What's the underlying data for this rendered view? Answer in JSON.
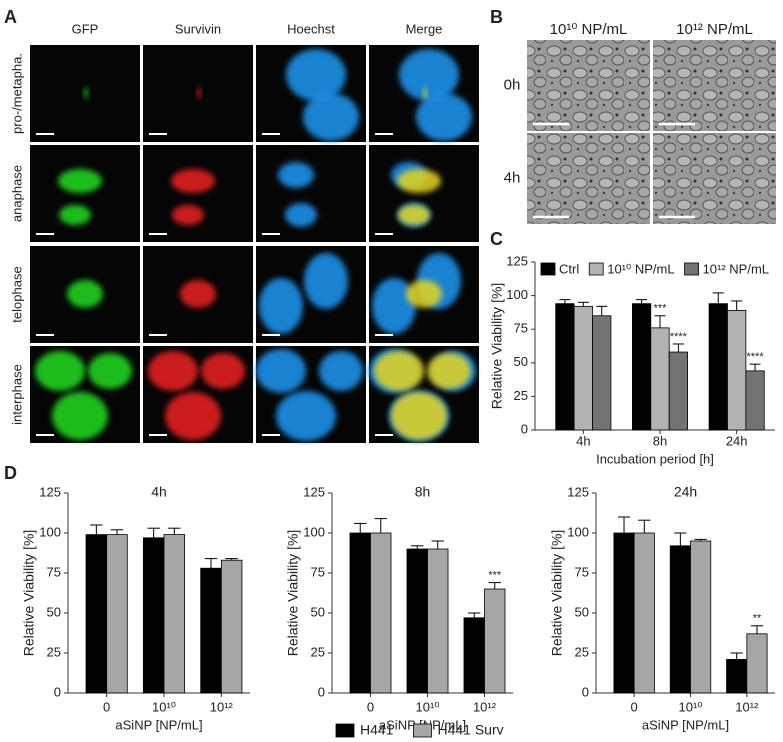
{
  "panel_labels": [
    "A",
    "B",
    "C",
    "D"
  ],
  "microscopy": {
    "columns": [
      "GFP",
      "Survivin",
      "Hoechst",
      "Merge"
    ],
    "rows": [
      "pro-/metapha.",
      "anaphase",
      "telophase",
      "interphase"
    ]
  },
  "brightfield": {
    "columns": [
      "10¹⁰ NP/mL",
      "10¹² NP/mL"
    ],
    "rows": [
      "0h",
      "4h"
    ]
  },
  "d_legend": [
    {
      "name": "H441",
      "color": "#000000"
    },
    {
      "name": "H441 Surv",
      "color": "#a6a6a6"
    }
  ],
  "chart_data": [
    {
      "type": "bar",
      "ylabel": "Relative Viability [%]",
      "xlabel": "Incubation period [h]",
      "categories": [
        "4h",
        "8h",
        "24h"
      ],
      "ylim": [
        0,
        125
      ],
      "yticks": [
        0,
        25,
        50,
        75,
        100,
        125
      ],
      "series": [
        {
          "name": "Ctrl",
          "color": "#000000",
          "values": [
            94,
            94,
            94
          ],
          "errors": [
            3,
            3,
            8
          ],
          "significance": [
            null,
            null,
            null
          ]
        },
        {
          "name": "10¹⁰ NP/mL",
          "color": "#b3b3b3",
          "values": [
            92,
            76,
            89
          ],
          "errors": [
            3,
            9,
            7
          ],
          "significance": [
            null,
            "***",
            null
          ]
        },
        {
          "name": "10¹² NP/mL",
          "color": "#737373",
          "values": [
            85,
            58,
            44
          ],
          "errors": [
            7,
            6,
            5
          ],
          "significance": [
            null,
            "****",
            "****"
          ]
        }
      ]
    },
    {
      "type": "bar",
      "title": "4h",
      "ylabel": "Relative Viability [%]",
      "xlabel": "aSiNP [NP/mL]",
      "categories": [
        "0",
        "10¹⁰",
        "10¹²"
      ],
      "ylim": [
        0,
        125
      ],
      "yticks": [
        0,
        25,
        50,
        75,
        100,
        125
      ],
      "series": [
        {
          "values": [
            99,
            97,
            78
          ],
          "errors": [
            6,
            6,
            6
          ],
          "significance": [
            null,
            null,
            null
          ]
        },
        {
          "values": [
            99,
            99,
            83
          ],
          "errors": [
            3,
            4,
            1
          ],
          "significance": [
            null,
            null,
            null
          ]
        }
      ]
    },
    {
      "type": "bar",
      "title": "8h",
      "ylabel": "Relative Viability [%]",
      "xlabel": "aSiNP [NP/mL]",
      "categories": [
        "0",
        "10¹⁰",
        "10¹²"
      ],
      "ylim": [
        0,
        125
      ],
      "yticks": [
        0,
        25,
        50,
        75,
        100,
        125
      ],
      "series": [
        {
          "values": [
            100,
            90,
            47
          ],
          "errors": [
            6,
            2,
            3
          ],
          "significance": [
            null,
            null,
            null
          ]
        },
        {
          "values": [
            100,
            90,
            65
          ],
          "errors": [
            9,
            5,
            4
          ],
          "significance": [
            null,
            null,
            "***"
          ]
        }
      ]
    },
    {
      "type": "bar",
      "title": "24h",
      "ylabel": "Relative Viability [%]",
      "xlabel": "aSiNP [NP/mL]",
      "categories": [
        "0",
        "10¹⁰",
        "10¹²"
      ],
      "ylim": [
        0,
        125
      ],
      "yticks": [
        0,
        25,
        50,
        75,
        100,
        125
      ],
      "series": [
        {
          "values": [
            100,
            92,
            21
          ],
          "errors": [
            10,
            8,
            4
          ],
          "significance": [
            null,
            null,
            null
          ]
        },
        {
          "values": [
            100,
            95,
            37
          ],
          "errors": [
            8,
            1,
            5
          ],
          "significance": [
            null,
            null,
            "**"
          ]
        }
      ]
    }
  ]
}
